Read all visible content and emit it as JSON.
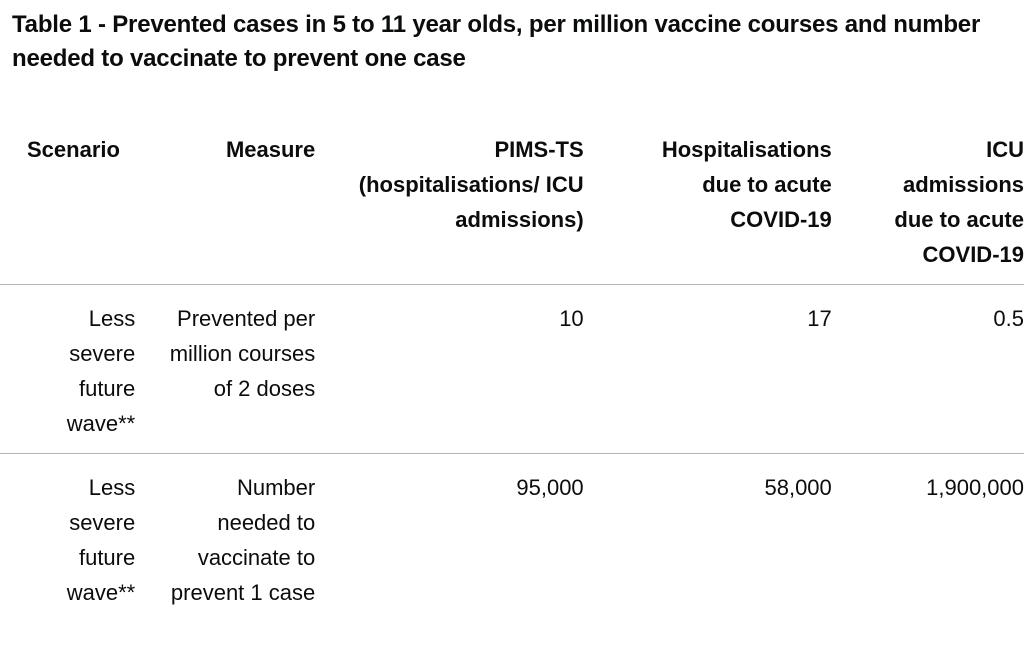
{
  "caption": "Table 1 - Prevented cases in 5 to 11 year olds, per million vaccine courses and number needed to vaccinate to prevent one case",
  "headers": {
    "scenario": "Scenario",
    "measure": "Measure",
    "pims": "PIMS-TS (hospitalisations/ ICU admissions)",
    "hospitalisations": "Hospitalisations due to acute COVID-19",
    "icu": "ICU admissions due to acute COVID-19"
  },
  "rows": [
    {
      "scenario": "Less severe future wave**",
      "measure": "Prevented per million courses of 2 doses",
      "pims": "10",
      "hospitalisations": "17",
      "icu": "0.5"
    },
    {
      "scenario": "Less severe future wave**",
      "measure": "Number needed to vaccinate to prevent 1 case",
      "pims": "95,000",
      "hospitalisations": "58,000",
      "icu": "1,900,000"
    }
  ]
}
